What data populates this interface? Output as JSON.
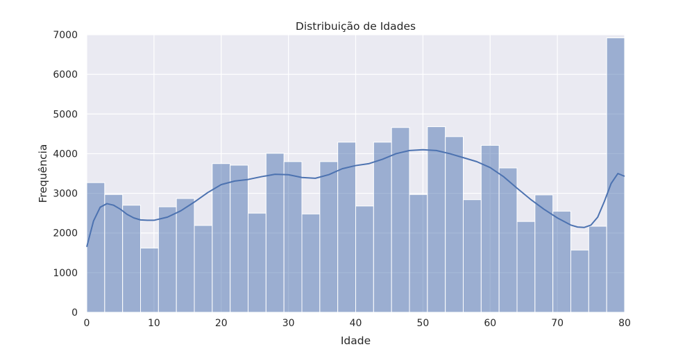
{
  "chart_data": {
    "type": "bar",
    "title": "Distribuição de Idades",
    "xlabel": "Idade",
    "ylabel": "Frequência",
    "xlim": [
      0,
      80
    ],
    "ylim": [
      0,
      7000
    ],
    "x_ticks": [
      0,
      10,
      20,
      30,
      40,
      50,
      60,
      70,
      80
    ],
    "y_ticks": [
      0,
      1000,
      2000,
      3000,
      4000,
      5000,
      6000,
      7000
    ],
    "grid": true,
    "legend": "none",
    "bin_edges": [
      0,
      2.667,
      5.333,
      8,
      10.667,
      13.333,
      16,
      18.667,
      21.333,
      24,
      26.667,
      29.333,
      32,
      34.667,
      37.333,
      40,
      42.667,
      45.333,
      48,
      50.667,
      53.333,
      56,
      58.667,
      61.333,
      64,
      66.667,
      69.333,
      72,
      74.667,
      77.333,
      80
    ],
    "values": [
      3270,
      2970,
      2700,
      1620,
      2660,
      2870,
      2190,
      3750,
      3710,
      2500,
      4010,
      3800,
      2480,
      3800,
      4290,
      2680,
      4290,
      4660,
      2970,
      4680,
      4430,
      2840,
      4210,
      3640,
      2290,
      2960,
      2550,
      1570,
      2170,
      6920
    ],
    "kde_x": [
      0,
      1,
      2,
      3,
      4,
      5,
      6,
      7,
      8,
      9,
      10,
      12,
      14,
      16,
      18,
      20,
      22,
      24,
      26,
      28,
      30,
      32,
      34,
      36,
      38,
      40,
      42,
      44,
      46,
      48,
      50,
      52,
      54,
      56,
      58,
      60,
      62,
      64,
      66,
      68,
      70,
      72,
      73,
      74,
      75,
      76,
      77,
      78,
      79,
      80
    ],
    "kde_y": [
      1650,
      2300,
      2650,
      2740,
      2700,
      2600,
      2470,
      2380,
      2330,
      2320,
      2320,
      2400,
      2560,
      2780,
      3020,
      3220,
      3310,
      3350,
      3420,
      3480,
      3470,
      3400,
      3380,
      3470,
      3620,
      3700,
      3750,
      3860,
      4000,
      4080,
      4100,
      4080,
      4000,
      3900,
      3800,
      3650,
      3420,
      3130,
      2850,
      2600,
      2380,
      2200,
      2150,
      2140,
      2200,
      2400,
      2800,
      3250,
      3500,
      3430
    ],
    "colors": {
      "bar": "#4c72b0",
      "line": "#4c72b0",
      "background": "#eaeaf2",
      "grid": "#ffffff"
    }
  }
}
